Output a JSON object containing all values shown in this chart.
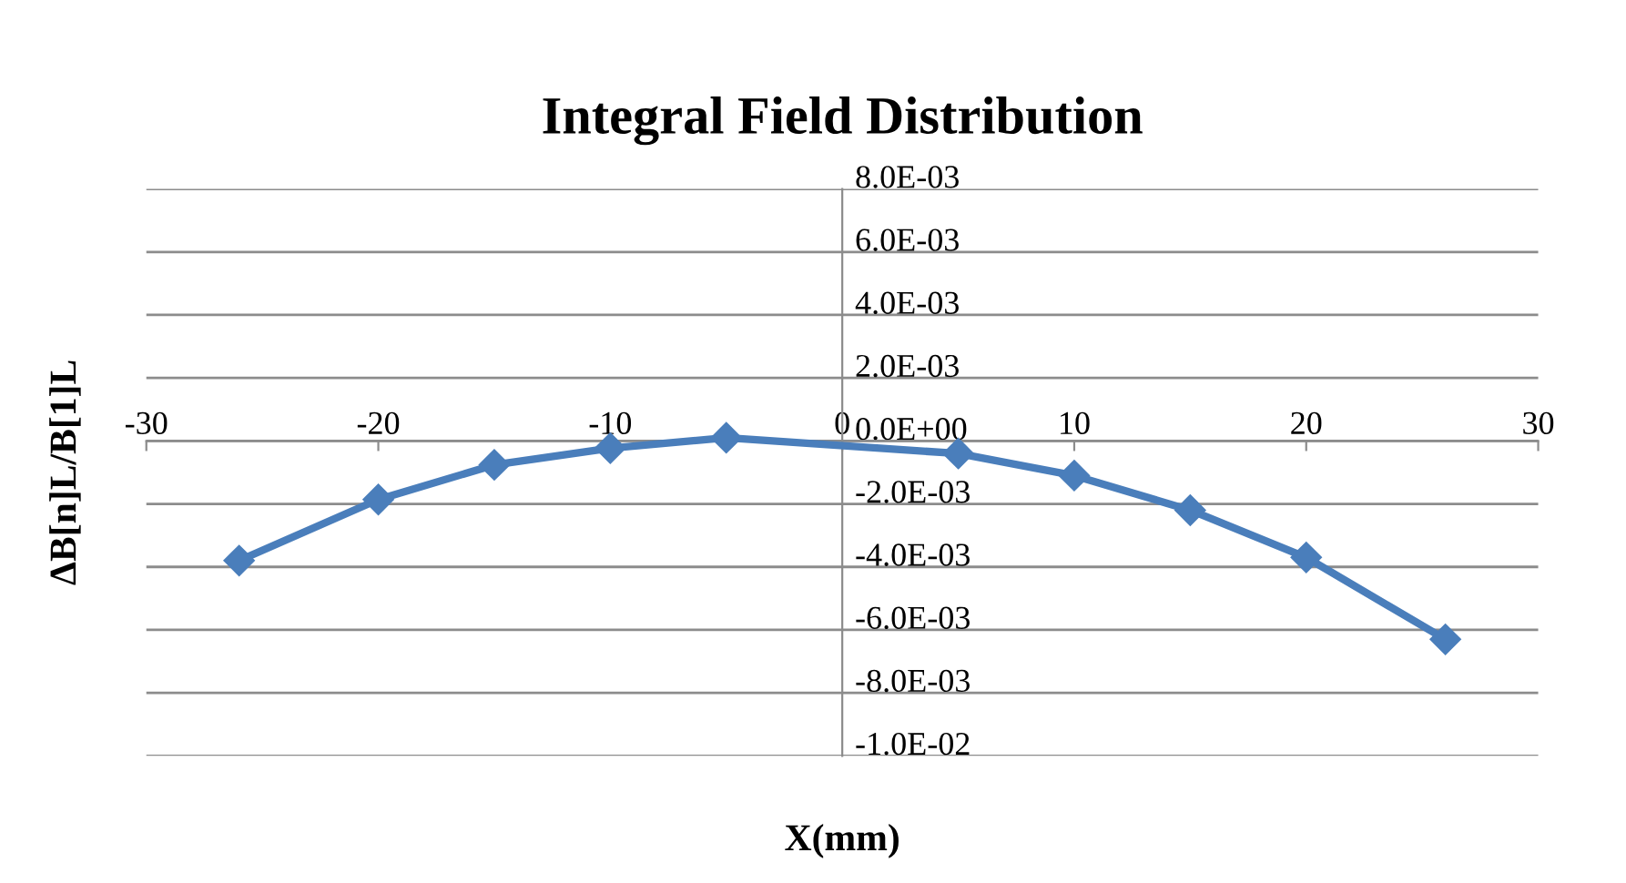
{
  "chart_data": {
    "type": "line",
    "title": "Integral Field Distribution",
    "xlabel": "X(mm)",
    "ylabel": "ΔB[n]L/B[1]L",
    "x": [
      -26,
      -20,
      -15,
      -10,
      -5,
      5,
      10,
      15,
      20,
      26
    ],
    "series": [
      {
        "color": "#4a7ebb",
        "values": [
          -0.0038,
          -0.00186,
          -0.00076,
          -0.00023,
          0.0001,
          -0.0004,
          -0.0011,
          -0.0022,
          -0.0037,
          -0.0063
        ]
      }
    ],
    "xlim": [
      -30,
      30
    ],
    "xticks": [
      -30,
      -20,
      -10,
      0,
      10,
      20,
      30
    ],
    "ylim": [
      -0.01,
      0.008
    ],
    "yticks": [
      {
        "value": -0.01,
        "label": "-1.0E-02"
      },
      {
        "value": -0.008,
        "label": "-8.0E-03"
      },
      {
        "value": -0.006,
        "label": "-6.0E-03"
      },
      {
        "value": -0.004,
        "label": "-4.0E-03"
      },
      {
        "value": -0.002,
        "label": "-2.0E-03"
      },
      {
        "value": 0,
        "label": "0.0E+00"
      },
      {
        "value": 0.002,
        "label": "2.0E-03"
      },
      {
        "value": 0.004,
        "label": "4.0E-03"
      },
      {
        "value": 0.006,
        "label": "6.0E-03"
      },
      {
        "value": 0.008,
        "label": "8.0E-03"
      }
    ],
    "grid": "y",
    "marker": "diamond",
    "line_style": "solid"
  }
}
